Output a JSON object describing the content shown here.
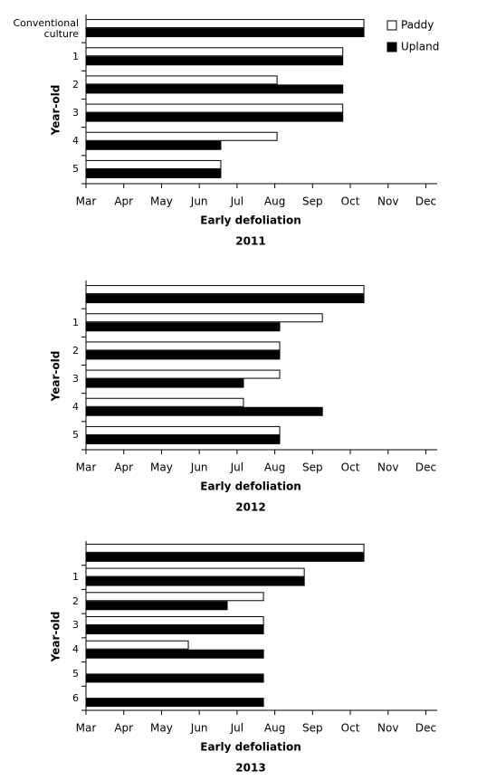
{
  "chart_data": [
    {
      "type": "bar",
      "orientation": "horizontal",
      "title": "2011",
      "x_label": "Early defoliation",
      "y_label": "Year-old",
      "categories": [
        "Conventional culture",
        "1",
        "2",
        "3",
        "4",
        "5"
      ],
      "series": [
        {
          "name": "Paddy",
          "color": "#ffffff",
          "values": [
            10.36,
            9.8,
            8.06,
            9.8,
            8.06,
            6.57
          ]
        },
        {
          "name": "Upland",
          "color": "#000000",
          "values": [
            10.36,
            9.8,
            9.8,
            9.8,
            6.57,
            6.57
          ]
        }
      ],
      "legend": "upper right",
      "xlim": [
        3,
        12.3
      ],
      "xticks": [
        {
          "value": 3,
          "label": "Mar"
        },
        {
          "value": 4,
          "label": "Apr"
        },
        {
          "value": 5,
          "label": "May"
        },
        {
          "value": 6,
          "label": "Jun"
        },
        {
          "value": 7,
          "label": "Jul"
        },
        {
          "value": 8,
          "label": "Aug"
        },
        {
          "value": 9,
          "label": "Sep"
        },
        {
          "value": 10,
          "label": "Oct"
        },
        {
          "value": 11,
          "label": "Nov"
        },
        {
          "value": 12,
          "label": "Dec"
        }
      ]
    },
    {
      "type": "bar",
      "orientation": "horizontal",
      "title": "2012",
      "x_label": "Early defoliation",
      "y_label": "Year-old",
      "categories": [
        null,
        "1",
        "2",
        "3",
        "4",
        "5"
      ],
      "series": [
        {
          "color": "#ffffff",
          "values": [
            10.36,
            9.26,
            8.13,
            8.13,
            7.17,
            8.13
          ]
        },
        {
          "color": "#000000",
          "values": [
            10.36,
            8.13,
            8.13,
            7.17,
            9.26,
            8.13
          ]
        }
      ],
      "xlim": [
        3,
        12.3
      ],
      "xticks": [
        {
          "value": 3,
          "label": "Mar"
        },
        {
          "value": 4,
          "label": "Apr"
        },
        {
          "value": 5,
          "label": "May"
        },
        {
          "value": 6,
          "label": "Jun"
        },
        {
          "value": 7,
          "label": "Jul"
        },
        {
          "value": 8,
          "label": "Aug"
        },
        {
          "value": 9,
          "label": "Sep"
        },
        {
          "value": 10,
          "label": "Oct"
        },
        {
          "value": 11,
          "label": "Nov"
        },
        {
          "value": 12,
          "label": "Dec"
        }
      ]
    },
    {
      "type": "bar",
      "orientation": "horizontal",
      "title": "2013",
      "x_label": "Early defoliation",
      "y_label": "Year-old",
      "categories": [
        null,
        "1",
        "2",
        "3",
        "4",
        "5",
        "6"
      ],
      "series": [
        {
          "color": "#ffffff",
          "values": [
            10.36,
            8.78,
            7.7,
            7.7,
            5.71,
            null,
            null
          ]
        },
        {
          "color": "#000000",
          "values": [
            10.36,
            8.78,
            6.74,
            7.7,
            7.7,
            7.7,
            7.7
          ]
        }
      ],
      "xlim": [
        3,
        12.3
      ],
      "xticks": [
        {
          "value": 3,
          "label": "Mar"
        },
        {
          "value": 4,
          "label": "Apr"
        },
        {
          "value": 5,
          "label": "May"
        },
        {
          "value": 6,
          "label": "Jun"
        },
        {
          "value": 7,
          "label": "Jul"
        },
        {
          "value": 8,
          "label": "Aug"
        },
        {
          "value": 9,
          "label": "Sep"
        },
        {
          "value": 10,
          "label": "Oct"
        },
        {
          "value": 11,
          "label": "Nov"
        },
        {
          "value": 12,
          "label": "Dec"
        }
      ]
    }
  ]
}
